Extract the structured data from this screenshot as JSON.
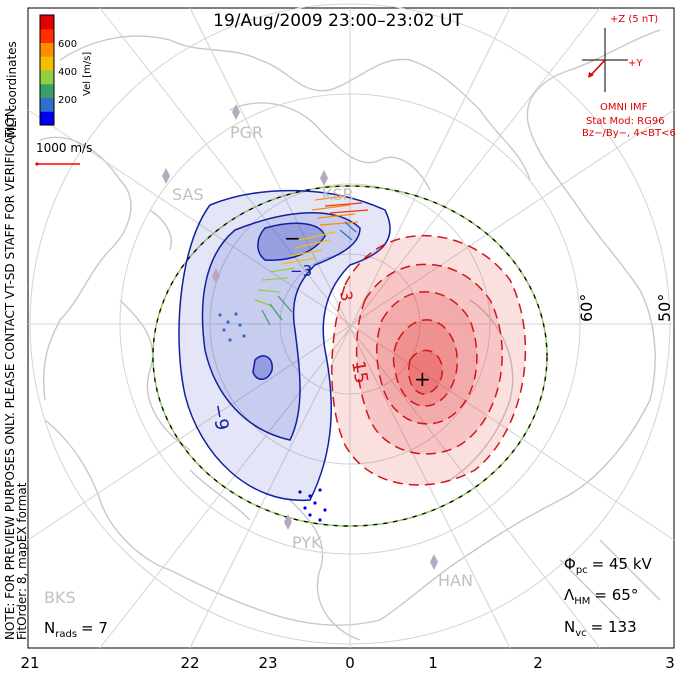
{
  "title": "19/Aug/2009 23:00–23:02 UT",
  "side_note": {
    "line1": "NOTE: FOR PREVIEW PURPOSES ONLY. PLEASE CONTACT VT-SD STAFF FOR VERIFICATION.",
    "line2": "FitOrder: 8, mapEX format",
    "line3": "MLT coordinates"
  },
  "colorbar": {
    "label": "Vel [m/s]",
    "ticks": [
      "600",
      "400",
      "200"
    ],
    "colors": [
      "#0000ee",
      "#2f6fd0",
      "#3a9e6a",
      "#8fd040",
      "#f0c000",
      "#ff8c00",
      "#ff3000",
      "#e00000"
    ]
  },
  "scale_label": "1000 m/s",
  "imf": {
    "bz_label": "+Z (5 nT)",
    "by_label": "+Y",
    "source": "OMNI IMF",
    "stat_mod": "Stat Mod: RG96",
    "condition": "Bz−/By−, 4<BT<6"
  },
  "stations": [
    {
      "code": "PGR"
    },
    {
      "code": "SAS"
    },
    {
      "code": "KSR"
    },
    {
      "code": "PYK"
    },
    {
      "code": "HAN"
    },
    {
      "code": "BKS"
    }
  ],
  "lat_labels": [
    "60°",
    "50°"
  ],
  "mlt_labels": [
    "21",
    "22",
    "23",
    "0",
    "1",
    "2",
    "3"
  ],
  "contour_labels": [
    "−9",
    "15",
    "−3",
    "3"
  ],
  "extrema": {
    "min_marker": "−",
    "max_marker": "+"
  },
  "stats": {
    "phi_pc": {
      "symbol": "Φ",
      "sub": "pc",
      "value": "= 45 kV"
    },
    "lambda_hm": {
      "symbol": "Λ",
      "sub": "HM",
      "value": "= 65°"
    },
    "n_vc": {
      "symbol": "N",
      "sub": "vc",
      "value": "= 133"
    },
    "n_rads": {
      "symbol": "N",
      "sub": "rads",
      "value": "= 7"
    }
  },
  "colors": {
    "coast": "#c8c8c8",
    "grid": "#d4d4d4",
    "negative_cell": "#1020a0",
    "positive_cell": "#d01818",
    "station": "#b8a8c0"
  }
}
